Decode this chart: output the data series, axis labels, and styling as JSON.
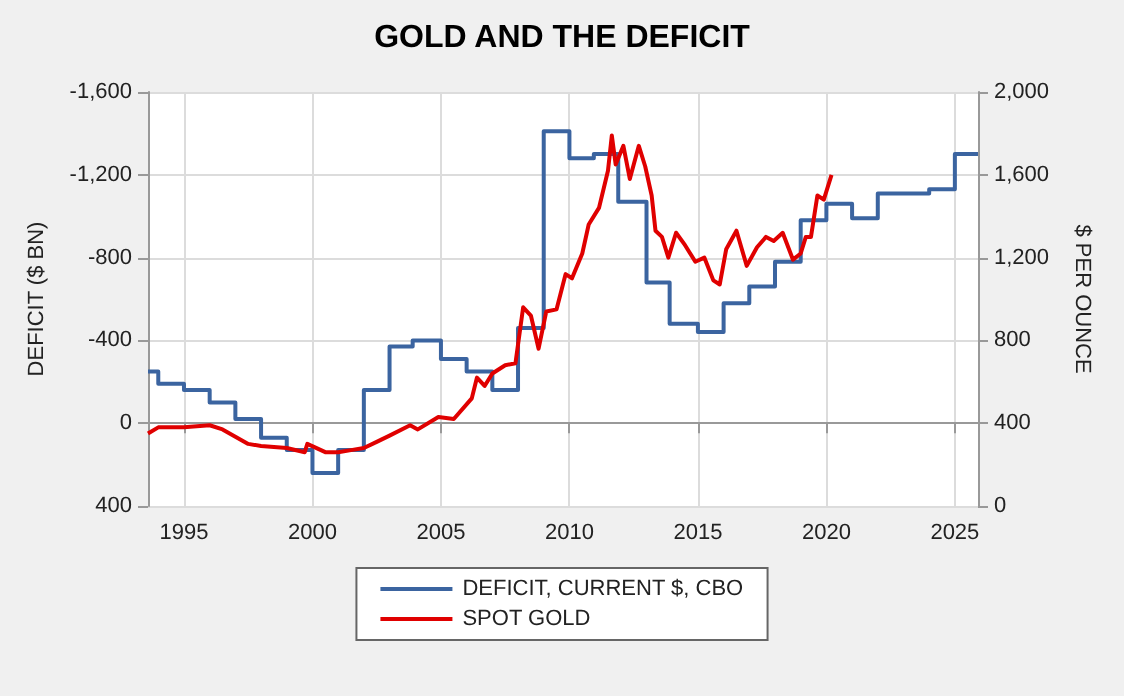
{
  "chart_data": {
    "type": "line",
    "title": "GOLD AND THE DEFICIT",
    "ylabel": "DEFICIT ($ BN)",
    "y2label": "$ PER OUNCE",
    "xlim": [
      1993.6,
      2025.9
    ],
    "xticks": [
      1995,
      2000,
      2005,
      2010,
      2015,
      2020,
      2025
    ],
    "ylim": [
      400,
      -1600
    ],
    "yticks": [
      {
        "value": -1600,
        "label": "-1,600"
      },
      {
        "value": -1200,
        "label": "-1,200"
      },
      -800,
      -400,
      0,
      400
    ],
    "y2lim": [
      0,
      2000
    ],
    "y2ticks": [
      0,
      400,
      800,
      {
        "value": 1200,
        "label": "1,200"
      },
      {
        "value": 1600,
        "label": "1,600"
      },
      {
        "value": 2000,
        "label": "2,000"
      }
    ],
    "grid": true,
    "legend": "bottom",
    "marker": "none",
    "line_style": "solid",
    "series": [
      {
        "name": "DEFICIT, CURRENT $, CBO",
        "type": "step",
        "axis": "y",
        "color": "#3b64a0",
        "x": [
          1993.6,
          1994,
          1995,
          1996,
          1997,
          1998,
          1999,
          2000,
          2001,
          2002,
          2003,
          2003.9,
          2005,
          2006,
          2007,
          2008,
          2009,
          2010,
          2010.95,
          2011.9,
          2013,
          2013.9,
          2015,
          2016,
          2017,
          2018,
          2019,
          2020,
          2021,
          2022,
          2024,
          2025,
          2025.9
        ],
        "values": [
          -250,
          -190,
          -160,
          -100,
          -20,
          70,
          130,
          240,
          130,
          -160,
          -370,
          -400,
          -310,
          -250,
          -160,
          -460,
          -1410,
          -1280,
          -1300,
          -1070,
          -680,
          -480,
          -440,
          -580,
          -660,
          -780,
          -980,
          -1060,
          -990,
          -1110,
          -1130,
          -1300,
          -1300
        ]
      },
      {
        "name": "SPOT GOLD",
        "axis": "y2",
        "color": "#e00000",
        "x": [
          1993.6,
          1994,
          1995,
          1996,
          1996.5,
          1997.5,
          1998,
          1999,
          1999.7,
          1999.8,
          2000.5,
          2001,
          2001.5,
          2002,
          2002.5,
          2003,
          2003.8,
          2004.1,
          2004.9,
          2005.5,
          2006.2,
          2006.4,
          2006.7,
          2007,
          2007.5,
          2007.9,
          2008.2,
          2008.5,
          2008.8,
          2009.1,
          2009.5,
          2009.85,
          2010.1,
          2010.5,
          2010.75,
          2011.15,
          2011.5,
          2011.65,
          2011.8,
          2012.1,
          2012.35,
          2012.7,
          2012.95,
          2013.2,
          2013.35,
          2013.6,
          2013.85,
          2014.15,
          2014.5,
          2014.9,
          2015.25,
          2015.6,
          2015.85,
          2016.1,
          2016.5,
          2016.9,
          2017.3,
          2017.65,
          2017.95,
          2018.3,
          2018.7,
          2019,
          2019.2,
          2019.4,
          2019.65,
          2019.9,
          2020.2
        ],
        "values": [
          350,
          380,
          380,
          390,
          370,
          300,
          290,
          280,
          260,
          300,
          260,
          260,
          270,
          280,
          310,
          340,
          390,
          370,
          430,
          420,
          520,
          620,
          580,
          640,
          680,
          690,
          960,
          920,
          760,
          940,
          950,
          1120,
          1100,
          1220,
          1360,
          1440,
          1620,
          1790,
          1650,
          1740,
          1580,
          1740,
          1640,
          1500,
          1330,
          1300,
          1200,
          1320,
          1260,
          1180,
          1200,
          1090,
          1070,
          1240,
          1330,
          1160,
          1250,
          1300,
          1280,
          1320,
          1190,
          1220,
          1300,
          1300,
          1500,
          1480,
          1600
        ]
      }
    ]
  }
}
